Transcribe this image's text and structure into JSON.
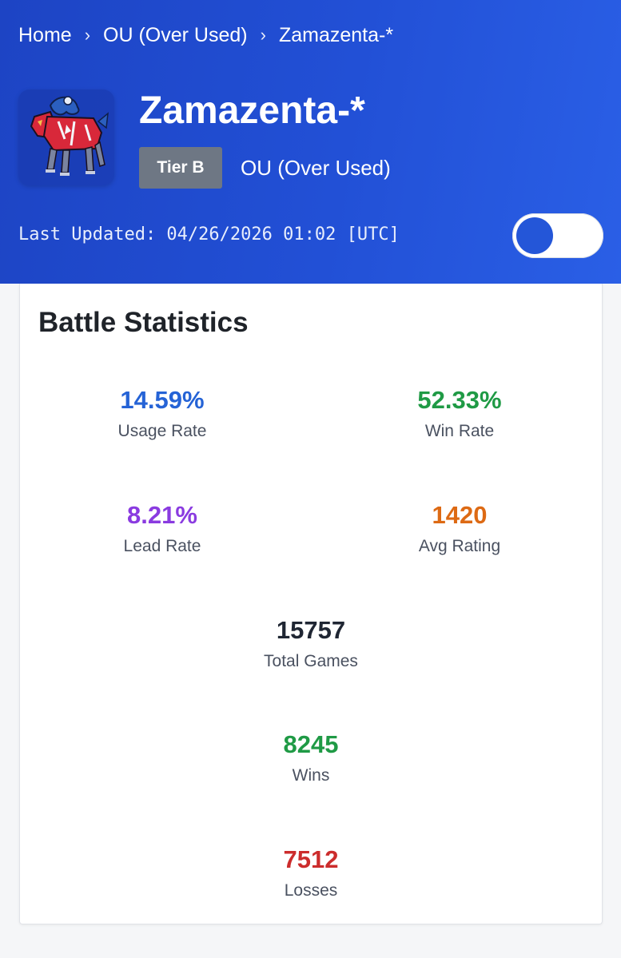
{
  "breadcrumb": {
    "home": "Home",
    "separator": "›",
    "tier": "OU (Over Used)",
    "current": "Zamazenta-*"
  },
  "pokemon": {
    "name": "Zamazenta-*",
    "tier_badge": "Tier B",
    "tier_name": "OU (Over Used)",
    "sprite_icon": "zamazenta-sprite-icon"
  },
  "last_updated": "Last Updated: 04/26/2026 01:02 [UTC]",
  "theme_toggle": {
    "icon": "toggle-switch"
  },
  "colors": {
    "header_blue": "#2250d6",
    "blue": "#2563d6",
    "green": "#1f9a45",
    "purple": "#8a3be0",
    "orange": "#dd6a14",
    "dark": "#1f2633",
    "red": "#cc2c2c"
  },
  "stats": {
    "title": "Battle Statistics",
    "usage_rate": {
      "value": "14.59%",
      "label": "Usage Rate"
    },
    "win_rate": {
      "value": "52.33%",
      "label": "Win Rate"
    },
    "lead_rate": {
      "value": "8.21%",
      "label": "Lead Rate"
    },
    "avg_rating": {
      "value": "1420",
      "label": "Avg Rating"
    },
    "total_games": {
      "value": "15757",
      "label": "Total Games"
    },
    "wins": {
      "value": "8245",
      "label": "Wins"
    },
    "losses": {
      "value": "7512",
      "label": "Losses"
    }
  }
}
